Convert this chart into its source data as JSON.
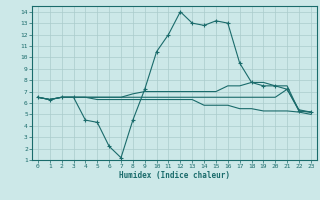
{
  "xlabel": "Humidex (Indice chaleur)",
  "bg_color": "#cce8e8",
  "grid_color": "#aacccc",
  "line_color": "#1a6b6b",
  "xlim": [
    -0.5,
    23.5
  ],
  "ylim": [
    1,
    14.5
  ],
  "xticks": [
    0,
    1,
    2,
    3,
    4,
    5,
    6,
    7,
    8,
    9,
    10,
    11,
    12,
    13,
    14,
    15,
    16,
    17,
    18,
    19,
    20,
    21,
    22,
    23
  ],
  "yticks": [
    1,
    2,
    3,
    4,
    5,
    6,
    7,
    8,
    9,
    10,
    11,
    12,
    13,
    14
  ],
  "series": [
    {
      "x": [
        0,
        1,
        2,
        3,
        4,
        5,
        6,
        7,
        8,
        9,
        10,
        11,
        12,
        13,
        14,
        15,
        16,
        17,
        18,
        19,
        20,
        21,
        22,
        23
      ],
      "y": [
        6.5,
        6.3,
        6.5,
        6.5,
        4.5,
        4.3,
        2.2,
        1.2,
        4.5,
        7.2,
        10.5,
        12.0,
        14.0,
        13.0,
        12.8,
        13.2,
        13.0,
        9.5,
        7.8,
        7.5,
        7.5,
        7.2,
        5.3,
        5.2
      ],
      "marker": "+"
    },
    {
      "x": [
        0,
        1,
        2,
        3,
        4,
        5,
        6,
        7,
        8,
        9,
        10,
        11,
        12,
        13,
        14,
        15,
        16,
        17,
        18,
        19,
        20,
        21,
        22,
        23
      ],
      "y": [
        6.5,
        6.3,
        6.5,
        6.5,
        6.5,
        6.5,
        6.5,
        6.5,
        6.8,
        7.0,
        7.0,
        7.0,
        7.0,
        7.0,
        7.0,
        7.0,
        7.5,
        7.5,
        7.8,
        7.8,
        7.5,
        7.5,
        5.3,
        5.2
      ],
      "marker": null
    },
    {
      "x": [
        0,
        1,
        2,
        3,
        4,
        5,
        6,
        7,
        8,
        9,
        10,
        11,
        12,
        13,
        14,
        15,
        16,
        17,
        18,
        19,
        20,
        21,
        22,
        23
      ],
      "y": [
        6.5,
        6.3,
        6.5,
        6.5,
        6.5,
        6.5,
        6.5,
        6.5,
        6.5,
        6.5,
        6.5,
        6.5,
        6.5,
        6.5,
        6.5,
        6.5,
        6.5,
        6.5,
        6.5,
        6.5,
        6.5,
        7.2,
        5.4,
        5.2
      ],
      "marker": null
    },
    {
      "x": [
        0,
        1,
        2,
        3,
        4,
        5,
        6,
        7,
        8,
        9,
        10,
        11,
        12,
        13,
        14,
        15,
        16,
        17,
        18,
        19,
        20,
        21,
        22,
        23
      ],
      "y": [
        6.5,
        6.3,
        6.5,
        6.5,
        6.5,
        6.3,
        6.3,
        6.3,
        6.3,
        6.3,
        6.3,
        6.3,
        6.3,
        6.3,
        5.8,
        5.8,
        5.8,
        5.5,
        5.5,
        5.3,
        5.3,
        5.3,
        5.2,
        5.0
      ],
      "marker": null
    }
  ]
}
